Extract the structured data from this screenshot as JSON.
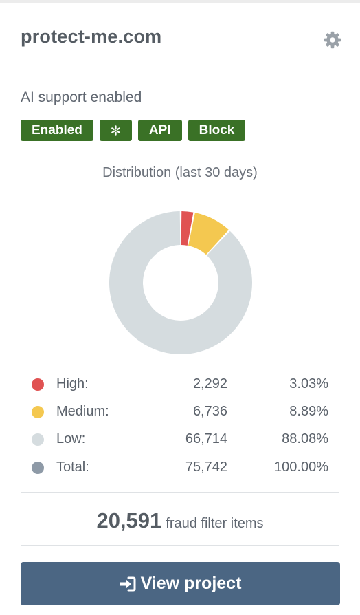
{
  "project": {
    "title": "protect-me.com",
    "settings_icon": "gear-icon"
  },
  "ai_support": {
    "label": "AI support enabled",
    "badges": [
      {
        "label": "Enabled"
      },
      {
        "label": "",
        "icon": "asterisk-icon"
      },
      {
        "label": "API"
      },
      {
        "label": "Block"
      }
    ]
  },
  "distribution": {
    "title": "Distribution (last 30 days)",
    "legend": [
      {
        "label": "High:",
        "count": "2,292",
        "percent": "3.03%",
        "color": "#e05252"
      },
      {
        "label": "Medium:",
        "count": "6,736",
        "percent": "8.89%",
        "color": "#f4c850"
      },
      {
        "label": "Low:",
        "count": "66,714",
        "percent": "88.08%",
        "color": "#d5dcdf"
      },
      {
        "label": "Total:",
        "count": "75,742",
        "percent": "100.00%",
        "color": "#8e9aa7"
      }
    ]
  },
  "chart_data": {
    "type": "pie",
    "categories": [
      "High",
      "Medium",
      "Low"
    ],
    "values": [
      2292,
      6736,
      66714
    ],
    "colors": [
      "#e05252",
      "#f4c850",
      "#d5dcdf"
    ],
    "title": "Distribution (last 30 days)"
  },
  "fraud": {
    "count": "20,591",
    "label": "fraud filter items"
  },
  "actions": {
    "view_project_label": "View project",
    "view_project_icon": "sign-in-icon"
  },
  "colors": {
    "badge_bg": "#3a7126",
    "button_bg": "#4b6683"
  }
}
